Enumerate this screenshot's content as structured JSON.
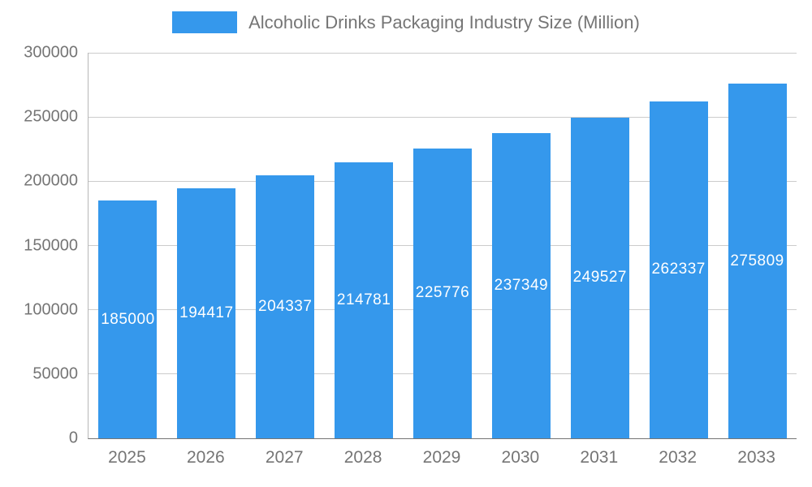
{
  "legend": {
    "swatch_color": "#3598EC"
  },
  "chart_data": {
    "type": "bar",
    "title": "Alcoholic Drinks Packaging Industry Size (Million)",
    "categories": [
      "2025",
      "2026",
      "2027",
      "2028",
      "2029",
      "2030",
      "2031",
      "2032",
      "2033"
    ],
    "values": [
      185000,
      194417,
      204337,
      214781,
      225776,
      237349,
      249527,
      262337,
      275809
    ],
    "value_labels": [
      "185000",
      "194417",
      "204337",
      "214781",
      "225776",
      "237349",
      "249527",
      "262337",
      "275809"
    ],
    "bar_color": "#3598EC",
    "value_label_color": "#ffffff",
    "axis_text_color": "#757575",
    "gridline_color": "#cccccc",
    "xlabel": "",
    "ylabel": "",
    "ylim": [
      0,
      300000
    ],
    "yticks": [
      0,
      50000,
      100000,
      150000,
      200000,
      250000,
      300000
    ],
    "grid": true,
    "legend_position": "top"
  }
}
